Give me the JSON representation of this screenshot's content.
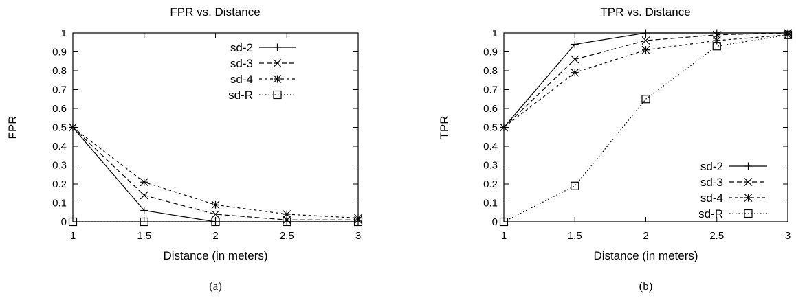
{
  "chart_data": [
    {
      "type": "line",
      "title": "FPR vs. Distance",
      "xlabel": "Distance (in meters)",
      "ylabel": "FPR",
      "caption": "(a)",
      "x": [
        1,
        1.5,
        2,
        2.5,
        3
      ],
      "xticks": [
        "1",
        "1.5",
        "2",
        "2.5",
        "3"
      ],
      "yticks": [
        "0",
        "0.1",
        "0.2",
        "0.3",
        "0.4",
        "0.5",
        "0.6",
        "0.7",
        "0.8",
        "0.9",
        "1"
      ],
      "xlim": [
        1,
        3
      ],
      "ylim": [
        0,
        1
      ],
      "legend_position": "top-right",
      "series": [
        {
          "name": "sd-2",
          "marker": "plus",
          "dash": "solid",
          "values": [
            0.5,
            0.06,
            0.0,
            0.0,
            0.0
          ]
        },
        {
          "name": "sd-3",
          "marker": "x",
          "dash": "dashed",
          "values": [
            0.5,
            0.14,
            0.04,
            0.01,
            0.01
          ]
        },
        {
          "name": "sd-4",
          "marker": "star",
          "dash": "short-dashed",
          "values": [
            0.5,
            0.21,
            0.09,
            0.04,
            0.02
          ]
        },
        {
          "name": "sd-R",
          "marker": "square",
          "dash": "dotted",
          "values": [
            0.0,
            0.0,
            0.0,
            0.0,
            0.0
          ]
        }
      ]
    },
    {
      "type": "line",
      "title": "TPR vs. Distance",
      "xlabel": "Distance (in meters)",
      "ylabel": "TPR",
      "caption": "(b)",
      "x": [
        1,
        1.5,
        2,
        2.5,
        3
      ],
      "xticks": [
        "1",
        "1.5",
        "2",
        "2.5",
        "3"
      ],
      "yticks": [
        "0",
        "0.1",
        "0.2",
        "0.3",
        "0.4",
        "0.5",
        "0.6",
        "0.7",
        "0.8",
        "0.9",
        "1"
      ],
      "xlim": [
        1,
        3
      ],
      "ylim": [
        0,
        1
      ],
      "legend_position": "bottom-right",
      "series": [
        {
          "name": "sd-2",
          "marker": "plus",
          "dash": "solid",
          "values": [
            0.5,
            0.94,
            1.0,
            1.0,
            1.0
          ]
        },
        {
          "name": "sd-3",
          "marker": "x",
          "dash": "dashed",
          "values": [
            0.5,
            0.86,
            0.96,
            0.99,
            1.0
          ]
        },
        {
          "name": "sd-4",
          "marker": "star",
          "dash": "short-dashed",
          "values": [
            0.5,
            0.79,
            0.91,
            0.96,
            0.99
          ]
        },
        {
          "name": "sd-R",
          "marker": "square",
          "dash": "dotted",
          "values": [
            0.0,
            0.19,
            0.65,
            0.93,
            0.99
          ]
        }
      ]
    }
  ]
}
